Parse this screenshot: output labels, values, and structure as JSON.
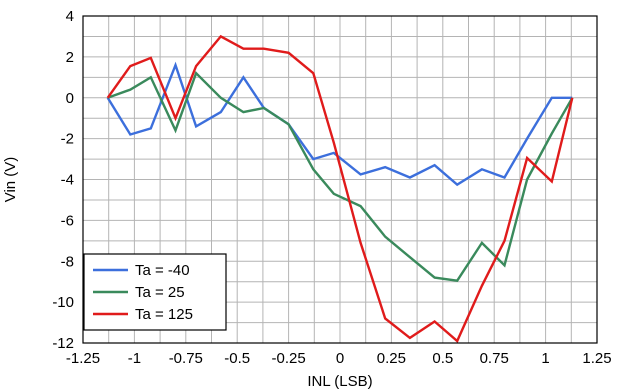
{
  "chart_data": {
    "type": "line",
    "title": "",
    "xlabel": "INL (LSB)",
    "ylabel": "Vin (V)",
    "xlim": [
      -1.25,
      1.25
    ],
    "ylim": [
      -12,
      4
    ],
    "x_ticks": [
      -1.25,
      -1,
      -0.75,
      -0.5,
      -0.25,
      0,
      0.25,
      0.5,
      0.75,
      1,
      1.25
    ],
    "x_tick_labels": [
      "-1.25",
      "-1",
      "-0.75",
      "-0.5",
      "-0.25",
      "0",
      "0.25",
      "0.5",
      "0.75",
      "1",
      "1.25"
    ],
    "y_ticks": [
      -12,
      -10,
      -8,
      -6,
      -4,
      -2,
      0,
      2,
      4
    ],
    "y_tick_labels": [
      "-12",
      "-10",
      "-8",
      "-6",
      "-4",
      "-2",
      "0",
      "2",
      "4"
    ],
    "x_minor_grid_step": 0.125,
    "y_minor_grid_step": 1,
    "grid": true,
    "legend_position": "bottom-left",
    "series": [
      {
        "name": "Ta = -40",
        "color": "#3c6fdc",
        "points": [
          [
            -1.13,
            0
          ],
          [
            -1.02,
            -1.8
          ],
          [
            -0.92,
            -1.5
          ],
          [
            -0.8,
            1.6
          ],
          [
            -0.7,
            -1.4
          ],
          [
            -0.58,
            -0.7
          ],
          [
            -0.47,
            1.0
          ],
          [
            -0.37,
            -0.5
          ],
          [
            -0.25,
            -1.3
          ],
          [
            -0.13,
            -3.0
          ],
          [
            -0.03,
            -2.7
          ],
          [
            0.1,
            -3.75
          ],
          [
            0.22,
            -3.4
          ],
          [
            0.34,
            -3.9
          ],
          [
            0.46,
            -3.3
          ],
          [
            0.57,
            -4.25
          ],
          [
            0.69,
            -3.5
          ],
          [
            0.8,
            -3.9
          ],
          [
            0.91,
            -2.0
          ],
          [
            1.03,
            0
          ],
          [
            1.13,
            0
          ]
        ]
      },
      {
        "name": "Ta = 25",
        "color": "#3a8a5c",
        "points": [
          [
            -1.13,
            0
          ],
          [
            -1.02,
            0.4
          ],
          [
            -0.92,
            1.0
          ],
          [
            -0.8,
            -1.6
          ],
          [
            -0.7,
            1.2
          ],
          [
            -0.58,
            0
          ],
          [
            -0.47,
            -0.7
          ],
          [
            -0.37,
            -0.5
          ],
          [
            -0.25,
            -1.3
          ],
          [
            -0.13,
            -3.5
          ],
          [
            -0.03,
            -4.7
          ],
          [
            0.1,
            -5.3
          ],
          [
            0.22,
            -6.8
          ],
          [
            0.34,
            -7.8
          ],
          [
            0.46,
            -8.8
          ],
          [
            0.57,
            -8.95
          ],
          [
            0.69,
            -7.1
          ],
          [
            0.8,
            -8.2
          ],
          [
            0.91,
            -4.0
          ],
          [
            1.03,
            -1.75
          ],
          [
            1.13,
            0
          ]
        ]
      },
      {
        "name": "Ta = 125",
        "color": "#e01b1b",
        "points": [
          [
            -1.13,
            0
          ],
          [
            -1.02,
            1.55
          ],
          [
            -0.92,
            1.95
          ],
          [
            -0.8,
            -1.0
          ],
          [
            -0.7,
            1.55
          ],
          [
            -0.58,
            3.0
          ],
          [
            -0.47,
            2.4
          ],
          [
            -0.37,
            2.4
          ],
          [
            -0.25,
            2.2
          ],
          [
            -0.13,
            1.2
          ],
          [
            -0.03,
            -2.2
          ],
          [
            0.1,
            -7.1
          ],
          [
            0.22,
            -10.8
          ],
          [
            0.34,
            -11.75
          ],
          [
            0.46,
            -10.95
          ],
          [
            0.57,
            -11.9
          ],
          [
            0.69,
            -9.2
          ],
          [
            0.8,
            -7.0
          ],
          [
            0.91,
            -2.95
          ],
          [
            1.03,
            -4.1
          ],
          [
            1.13,
            0
          ]
        ]
      }
    ]
  }
}
